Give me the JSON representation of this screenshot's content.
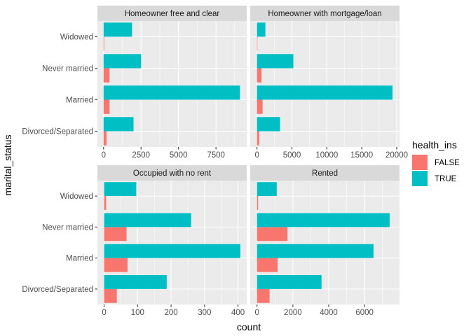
{
  "chart_data": {
    "type": "bar",
    "orientation": "horizontal",
    "position": "dodge",
    "facet_by": "housing_type",
    "xlabel": "count",
    "ylabel": "marital_status",
    "categories": [
      "Divorced/Separated",
      "Married",
      "Never married",
      "Widowed"
    ],
    "legend": {
      "title": "health_ins",
      "placement": "right",
      "entries": [
        {
          "label": "FALSE",
          "color": "#F8766D"
        },
        {
          "label": "TRUE",
          "color": "#00BFC4"
        }
      ]
    },
    "panels": [
      {
        "title": "Homeowner free and clear",
        "xlim": [
          -410,
          9550
        ],
        "ticks": [
          0,
          2500,
          5000,
          7500
        ],
        "tick_labels": [
          "0",
          "2500",
          "5000",
          "7500"
        ],
        "series": [
          {
            "name": "FALSE",
            "values": [
              200,
              400,
              400,
              40
            ]
          },
          {
            "name": "TRUE",
            "values": [
              2000,
              9100,
              2500,
              1900
            ]
          }
        ]
      },
      {
        "title": "Homeowner with mortgage/loan",
        "xlim": [
          -970,
          20400
        ],
        "ticks": [
          0,
          5000,
          10000,
          15000,
          20000
        ],
        "tick_labels": [
          "0",
          "5000",
          "10000",
          "15000",
          "20000"
        ],
        "series": [
          {
            "name": "FALSE",
            "values": [
              320,
              800,
              650,
              60
            ]
          },
          {
            "name": "TRUE",
            "values": [
              3300,
              19400,
              5200,
              1200
            ]
          }
        ]
      },
      {
        "title": "Occupied with no rent",
        "xlim": [
          -20,
          426
        ],
        "ticks": [
          0,
          100,
          200,
          300,
          400
        ],
        "tick_labels": [
          "0",
          "100",
          "200",
          "300",
          "400"
        ],
        "series": [
          {
            "name": "FALSE",
            "values": [
              38,
              70,
              67,
              6
            ]
          },
          {
            "name": "TRUE",
            "values": [
              187,
              407,
              260,
              96
            ]
          }
        ]
      },
      {
        "title": "Rented",
        "xlim": [
          -380,
          7950
        ],
        "ticks": [
          0,
          2000,
          4000,
          6000
        ],
        "tick_labels": [
          "0",
          "2000",
          "4000",
          "6000"
        ],
        "series": [
          {
            "name": "FALSE",
            "values": [
              700,
              1150,
              1700,
              60
            ]
          },
          {
            "name": "TRUE",
            "values": [
              3600,
              6500,
              7400,
              1100
            ]
          }
        ]
      }
    ]
  }
}
